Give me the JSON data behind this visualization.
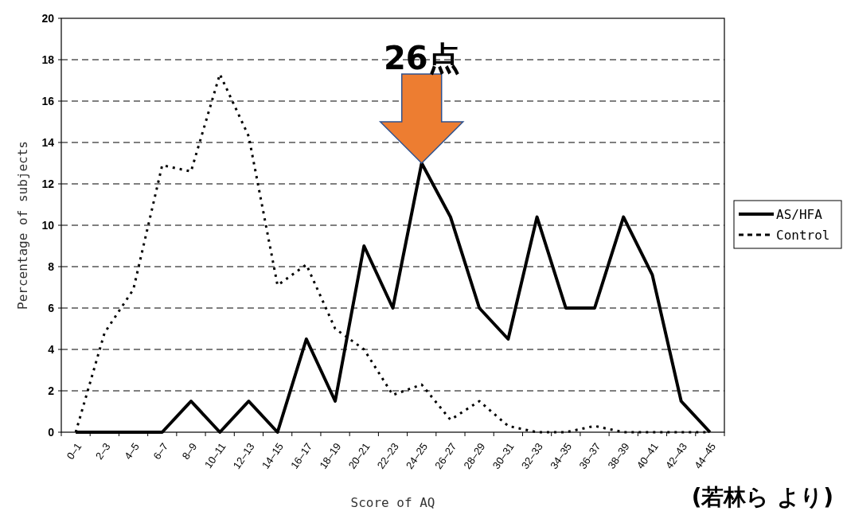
{
  "chart_data": {
    "type": "line",
    "xlabel": "Score of AQ",
    "ylabel": "Percentage of subjects",
    "categories": [
      "0–1",
      "2–3",
      "4–5",
      "6–7",
      "8–9",
      "10–11",
      "12–13",
      "14–15",
      "16–17",
      "18–19",
      "20–21",
      "22–23",
      "24–25",
      "26–27",
      "28–29",
      "30–31",
      "32–33",
      "34–35",
      "36–37",
      "38–39",
      "40–41",
      "42–43",
      "44–45"
    ],
    "series": [
      {
        "name": "AS/HFA",
        "color": "#000000",
        "line_style": "solid",
        "values": [
          0,
          0,
          0,
          0,
          1.5,
          0,
          1.5,
          0,
          4.5,
          1.5,
          9,
          6,
          13,
          10.4,
          6,
          4.5,
          10.4,
          6,
          6,
          10.4,
          7.6,
          1.5,
          0
        ]
      },
      {
        "name": "Control",
        "color": "#000000",
        "line_style": "dotted",
        "values": [
          0,
          4.8,
          6.9,
          12.9,
          12.6,
          17.3,
          14.3,
          7.1,
          8.1,
          5.0,
          4.0,
          1.8,
          2.3,
          0.6,
          1.5,
          0.3,
          0,
          0,
          0.3,
          0,
          0,
          0,
          0
        ]
      }
    ],
    "ylim": [
      0,
      20
    ],
    "yticks": [
      0,
      2,
      4,
      6,
      8,
      10,
      12,
      14,
      16,
      18,
      20
    ],
    "grid": "y",
    "legend": "right",
    "marker": "none",
    "annotations": [
      {
        "text": "26点",
        "x": "24–25",
        "y": 13
      },
      "(若林ら より)"
    ]
  }
}
